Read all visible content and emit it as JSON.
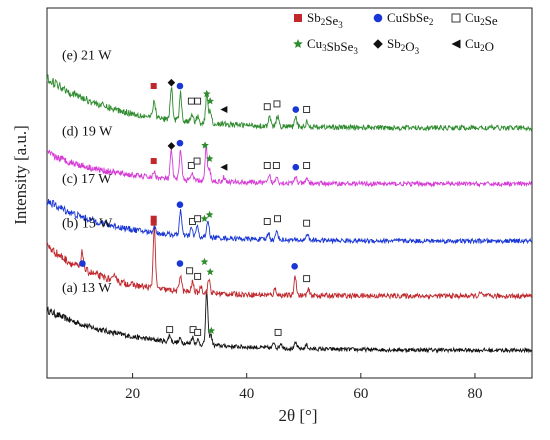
{
  "chart_data": {
    "type": "line",
    "xlabel": "2θ [°]",
    "ylabel": "Intensity [a.u.]",
    "xlim": [
      5,
      90
    ],
    "x_ticks": [
      20,
      40,
      60,
      80
    ],
    "legend_placement": "top-right",
    "legend": [
      {
        "name": "Sb2Se3",
        "base": "Sb",
        "parts": [
          [
            "Sb",
            "2"
          ],
          [
            "Se",
            "3"
          ]
        ],
        "marker": "filled-square",
        "color": "#c0282d"
      },
      {
        "name": "CuSbSe2",
        "parts": [
          [
            "CuSbSe",
            "2"
          ]
        ],
        "marker": "filled-circle",
        "color": "#1a37d6"
      },
      {
        "name": "Cu2Se",
        "parts": [
          [
            "Cu",
            "2"
          ],
          [
            "Se",
            ""
          ]
        ],
        "marker": "open-square",
        "color": "#222222"
      },
      {
        "name": "Cu3SbSe3",
        "parts": [
          [
            "Cu",
            "3"
          ],
          [
            "SbSe",
            "3"
          ]
        ],
        "marker": "star",
        "color": "#2e8b2e"
      },
      {
        "name": "Sb2O3",
        "parts": [
          [
            "Sb",
            "2"
          ],
          [
            "O",
            "3"
          ]
        ],
        "marker": "filled-diamond",
        "color": "#111111"
      },
      {
        "name": "Cu2O",
        "parts": [
          [
            "Cu",
            "2"
          ],
          [
            "O",
            ""
          ]
        ],
        "marker": "left-triangle",
        "color": "#111111"
      }
    ],
    "series": [
      {
        "name": "(a) 13 W",
        "color": "#111111",
        "offset": 0.0,
        "start": 0.75,
        "end": 0.03,
        "decay": 14,
        "noise": 0.035,
        "peaks": [
          [
            26.5,
            0.12
          ],
          [
            28.4,
            0.08
          ],
          [
            30.5,
            0.12
          ],
          [
            31.4,
            0.08
          ],
          [
            33.0,
            0.95
          ],
          [
            33.7,
            0.2
          ],
          [
            44.8,
            0.1
          ],
          [
            46.0,
            0.09
          ],
          [
            48.6,
            0.1
          ],
          [
            50.5,
            0.07
          ]
        ],
        "markers": [
          {
            "x": 26.5,
            "type": "open-square",
            "h": 0.32
          },
          {
            "x": 30.6,
            "type": "open-square",
            "h": 0.32
          },
          {
            "x": 31.4,
            "type": "open-square",
            "h": 0.27
          },
          {
            "x": 33.8,
            "type": "star",
            "h": 0.3
          },
          {
            "x": 45.5,
            "type": "open-square",
            "h": 0.27
          }
        ]
      },
      {
        "name": "(b) 15 W",
        "color": "#c0282d",
        "offset": 0.95,
        "start": 0.95,
        "end": 0.05,
        "decay": 10,
        "noise": 0.045,
        "peaks": [
          [
            11.2,
            0.3
          ],
          [
            17.0,
            0.12
          ],
          [
            23.8,
            1.1
          ],
          [
            28.4,
            0.3
          ],
          [
            30.5,
            0.18
          ],
          [
            32.0,
            0.12
          ],
          [
            33.4,
            0.25
          ],
          [
            45.0,
            0.12
          ],
          [
            48.5,
            0.35
          ],
          [
            50.8,
            0.1
          ],
          [
            81.0,
            0.05
          ]
        ],
        "markers": [
          {
            "x": 11.2,
            "type": "filled-circle",
            "h": 0.55
          },
          {
            "x": 23.7,
            "type": "filled-square",
            "h": 1.28
          },
          {
            "x": 28.3,
            "type": "filled-circle",
            "h": 0.55
          },
          {
            "x": 30.0,
            "type": "open-square",
            "h": 0.42
          },
          {
            "x": 31.4,
            "type": "open-square",
            "h": 0.32
          },
          {
            "x": 32.6,
            "type": "star",
            "h": 0.58
          },
          {
            "x": 33.6,
            "type": "star",
            "h": 0.4
          },
          {
            "x": 48.4,
            "type": "filled-circle",
            "h": 0.5
          },
          {
            "x": 50.5,
            "type": "open-square",
            "h": 0.28
          }
        ]
      },
      {
        "name": "(c) 17 W",
        "color": "#1a37d6",
        "offset": 1.95,
        "start": 0.75,
        "end": 0.03,
        "decay": 12,
        "noise": 0.04,
        "peaks": [
          [
            23.8,
            0.12
          ],
          [
            28.4,
            0.45
          ],
          [
            30.3,
            0.15
          ],
          [
            31.3,
            0.18
          ],
          [
            33.2,
            0.3
          ],
          [
            43.8,
            0.12
          ],
          [
            45.3,
            0.16
          ],
          [
            50.6,
            0.12
          ]
        ],
        "markers": [
          {
            "x": 23.7,
            "type": "filled-square",
            "h": 0.35
          },
          {
            "x": 28.3,
            "type": "filled-circle",
            "h": 0.6
          },
          {
            "x": 30.5,
            "type": "open-square",
            "h": 0.3
          },
          {
            "x": 31.4,
            "type": "open-square",
            "h": 0.35
          },
          {
            "x": 32.6,
            "type": "star",
            "h": 0.35
          },
          {
            "x": 33.5,
            "type": "star",
            "h": 0.42
          },
          {
            "x": 43.6,
            "type": "open-square",
            "h": 0.3
          },
          {
            "x": 45.4,
            "type": "open-square",
            "h": 0.35
          },
          {
            "x": 50.5,
            "type": "open-square",
            "h": 0.27
          }
        ]
      },
      {
        "name": "(d) 19 W",
        "color": "#d63bd6",
        "offset": 2.95,
        "start": 0.6,
        "end": 0.05,
        "decay": 12,
        "noise": 0.04,
        "peaks": [
          [
            23.8,
            0.1
          ],
          [
            26.8,
            0.5
          ],
          [
            28.4,
            0.55
          ],
          [
            30.4,
            0.12
          ],
          [
            32.9,
            0.6
          ],
          [
            33.5,
            0.2
          ],
          [
            36.0,
            0.08
          ],
          [
            44.0,
            0.12
          ],
          [
            45.3,
            0.12
          ],
          [
            48.6,
            0.12
          ],
          [
            50.6,
            0.08
          ]
        ],
        "markers": [
          {
            "x": 23.7,
            "type": "filled-square",
            "h": 0.38
          },
          {
            "x": 26.8,
            "type": "filled-diamond",
            "h": 0.65
          },
          {
            "x": 28.3,
            "type": "filled-circle",
            "h": 0.7
          },
          {
            "x": 30.3,
            "type": "open-square",
            "h": 0.3
          },
          {
            "x": 31.3,
            "type": "open-square",
            "h": 0.38
          },
          {
            "x": 32.7,
            "type": "star",
            "h": 0.66
          },
          {
            "x": 33.5,
            "type": "star",
            "h": 0.42
          },
          {
            "x": 36.0,
            "type": "left-triangle",
            "h": 0.27
          },
          {
            "x": 43.6,
            "type": "open-square",
            "h": 0.3
          },
          {
            "x": 45.2,
            "type": "open-square",
            "h": 0.3
          },
          {
            "x": 48.6,
            "type": "filled-circle",
            "h": 0.27
          },
          {
            "x": 50.5,
            "type": "open-square",
            "h": 0.3
          }
        ]
      },
      {
        "name": "(e) 21 W",
        "color": "#2e8b2e",
        "offset": 3.95,
        "start": 0.95,
        "end": 0.05,
        "decay": 12,
        "noise": 0.045,
        "peaks": [
          [
            23.8,
            0.3
          ],
          [
            26.8,
            0.6
          ],
          [
            28.4,
            0.5
          ],
          [
            30.4,
            0.15
          ],
          [
            31.4,
            0.12
          ],
          [
            33.0,
            0.5
          ],
          [
            33.6,
            0.25
          ],
          [
            44.0,
            0.15
          ],
          [
            45.4,
            0.18
          ],
          [
            48.6,
            0.15
          ],
          [
            50.6,
            0.1
          ]
        ],
        "markers": [
          {
            "x": 23.7,
            "type": "filled-square",
            "h": 0.72
          },
          {
            "x": 26.8,
            "type": "filled-diamond",
            "h": 0.78
          },
          {
            "x": 28.3,
            "type": "filled-circle",
            "h": 0.72
          },
          {
            "x": 30.3,
            "type": "open-square",
            "h": 0.45
          },
          {
            "x": 31.4,
            "type": "open-square",
            "h": 0.45
          },
          {
            "x": 33.0,
            "type": "star",
            "h": 0.58
          },
          {
            "x": 33.6,
            "type": "star",
            "h": 0.45
          },
          {
            "x": 36.0,
            "type": "left-triangle",
            "h": 0.3
          },
          {
            "x": 43.6,
            "type": "open-square",
            "h": 0.35
          },
          {
            "x": 45.3,
            "type": "open-square",
            "h": 0.4
          },
          {
            "x": 48.6,
            "type": "filled-circle",
            "h": 0.3
          },
          {
            "x": 50.5,
            "type": "open-square",
            "h": 0.3
          }
        ]
      }
    ]
  }
}
